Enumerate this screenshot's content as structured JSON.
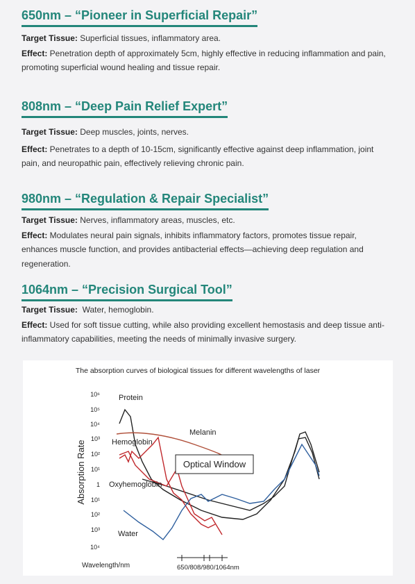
{
  "sections": [
    {
      "title": "650nm – “Pioneer in Superficial Repair”",
      "target_label": "Target Tissue:",
      "target_text": " Superficial tissues, inflammatory area.",
      "effect_label": "Effect:",
      "effect_text": " Penetration depth of approximately 5cm, highly effective in reducing inflammation and pain, promoting superficial wound healing and tissue repair."
    },
    {
      "title": "808nm – “Deep Pain Relief Expert”",
      "target_label": "Target Tissue:",
      "target_text": " Deep muscles, joints, nerves.",
      "effect_label": "Effect:",
      "effect_text": " Penetrates to a depth of 10-15cm, significantly effective against deep inflammation, joint pain, and neuropathic pain, effectively relieving chronic pain."
    },
    {
      "title": "980nm – “Regulation & Repair Specialist”",
      "target_label": "Target Tissue:",
      "target_text": " Nerves, inflammatory areas, muscles, etc.",
      "effect_label": "Effect:",
      "effect_text": " Modulates neural pain signals, inhibits inflammatory factors, promotes tissue repair, enhances muscle function, and provides antibacterial effects—achieving deep regulation and regeneration."
    },
    {
      "title": "1064nm – “Precision Surgical Tool”",
      "target_label": "Target Tissue:",
      "target_text": "  Water, hemoglobin.",
      "effect_label": "Effect:",
      "effect_text": " Used for soft tissue cutting, while also providing excellent hemostasis and deep tissue anti-inflammatory capabilities, meeting the needs of minimally invasive surgery."
    }
  ],
  "figure": {
    "title": "The absorption curves of biological tissues for different wavelengths of laser",
    "y_axis_label": "Absorption Rate",
    "y_ticks": [
      "10⁶",
      "10⁵",
      "10⁴",
      "10³",
      "10²",
      "10¹",
      "1",
      "10¹",
      "10²",
      "10³",
      "10⁴"
    ],
    "labels": {
      "protein": "Protein",
      "melanin": "Melanin",
      "hemoglobin": "Hemoglobin",
      "optical_window": "Optical Window",
      "oxyhemoglobin": "Oxyhemoglobin",
      "water": "Water"
    },
    "x_axis_label": "Wavelength/nm",
    "x_marks": "650/808/980/1064nm"
  }
}
